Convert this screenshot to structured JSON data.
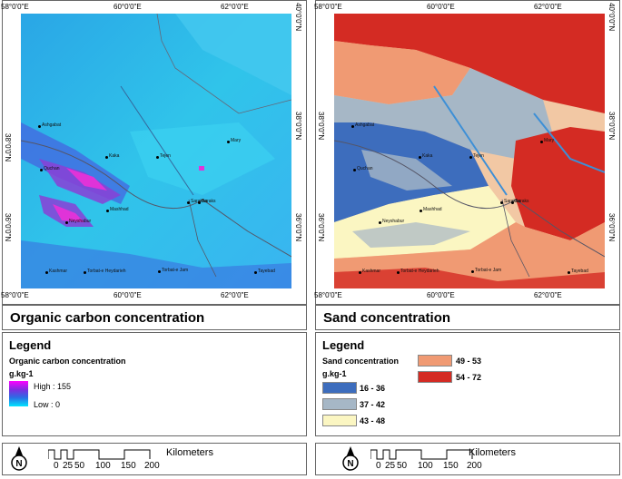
{
  "left": {
    "title": "Organic carbon concentration",
    "legend_heading": "Legend",
    "legend_sub": "Organic carbon concentration",
    "unit": "g.kg-1",
    "high": "High : 155",
    "low": "Low : 0"
  },
  "right": {
    "title": "Sand concentration",
    "legend_heading": "Legend",
    "legend_sub": "Sand concentration",
    "unit": "g.kg-1",
    "classes": [
      {
        "label": "16 - 36",
        "color": "#3d6dbd"
      },
      {
        "label": "37 - 42",
        "color": "#a6b7c6"
      },
      {
        "label": "43 - 48",
        "color": "#fbf6c2"
      },
      {
        "label": "49 - 53",
        "color": "#f09a73"
      },
      {
        "label": "54 - 72",
        "color": "#d42b23"
      }
    ]
  },
  "axes": {
    "top": [
      "60°0'0\"E",
      "62°0'0\"E"
    ],
    "bottom": [
      "58°0'0\"E",
      "60°0'0\"E",
      "62°0'0\"E"
    ],
    "lat": [
      "40°0'0\"N",
      "38°0'0\"N",
      "36°0'0\"N"
    ]
  },
  "scale": {
    "label": "Kilometers",
    "ticks": [
      "0",
      "25",
      "50",
      "100",
      "150",
      "200"
    ],
    "north": "N"
  },
  "cities": [
    "Ashgabat",
    "Kaka",
    "Tejen",
    "Mary",
    "Quchan",
    "Sarakhs",
    "Saraks",
    "Mashhad",
    "Neyshabur",
    "Kashmar",
    "Torbat-e Heydarieh",
    "Torbat-e Jam",
    "Tayebad"
  ]
}
